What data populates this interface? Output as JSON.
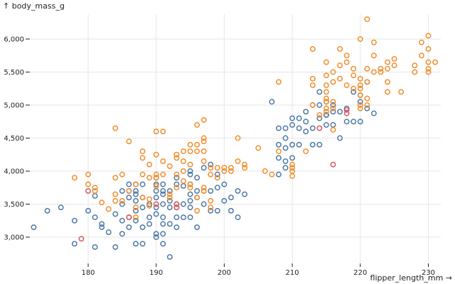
{
  "chart_data": {
    "type": "scatter",
    "title": "",
    "xlabel": "flipper_length_mm →",
    "ylabel": "↑ body_mass_g",
    "xlim": [
      170.5,
      233.5
    ],
    "ylim": [
      2600,
      6400
    ],
    "xticks": [
      180,
      190,
      200,
      210,
      220,
      230
    ],
    "xtick_labels": [
      "180",
      "190",
      "200",
      "210",
      "220",
      "230"
    ],
    "yticks": [
      3000,
      3500,
      4000,
      4500,
      5000,
      5500,
      6000
    ],
    "ytick_labels": [
      "3,000",
      "3,500",
      "4,000",
      "4,500",
      "5,000",
      "5,500",
      "6,000"
    ],
    "grid": true,
    "legend": "none",
    "marker": "hollow-circle",
    "series": [
      {
        "name": "blue",
        "color": "#4e79a7",
        "points": [
          [
            172,
            3150
          ],
          [
            174,
            3400
          ],
          [
            176,
            3450
          ],
          [
            178,
            3250
          ],
          [
            178,
            2900
          ],
          [
            180,
            3400
          ],
          [
            181,
            3625
          ],
          [
            181,
            3300
          ],
          [
            181,
            2850
          ],
          [
            182,
            3200
          ],
          [
            182,
            3150
          ],
          [
            183,
            3075
          ],
          [
            184,
            3350
          ],
          [
            184,
            2850
          ],
          [
            185,
            3700
          ],
          [
            185,
            3500
          ],
          [
            185,
            3250
          ],
          [
            185,
            3050
          ],
          [
            186,
            3700
          ],
          [
            186,
            3800
          ],
          [
            186,
            3600
          ],
          [
            186,
            3300
          ],
          [
            186,
            3150
          ],
          [
            187,
            3800
          ],
          [
            187,
            3700
          ],
          [
            187,
            3650
          ],
          [
            187,
            3550
          ],
          [
            187,
            3400
          ],
          [
            187,
            3250
          ],
          [
            187,
            2900
          ],
          [
            188,
            3800
          ],
          [
            188,
            3600
          ],
          [
            188,
            3450
          ],
          [
            188,
            3150
          ],
          [
            188,
            2900
          ],
          [
            189,
            3500
          ],
          [
            189,
            3300
          ],
          [
            189,
            3200
          ],
          [
            190,
            3900
          ],
          [
            190,
            3800
          ],
          [
            190,
            3700
          ],
          [
            190,
            3600
          ],
          [
            190,
            3450
          ],
          [
            190,
            3350
          ],
          [
            190,
            3050
          ],
          [
            190,
            3000
          ],
          [
            191,
            3800
          ],
          [
            191,
            3700
          ],
          [
            191,
            3650
          ],
          [
            191,
            3500
          ],
          [
            191,
            3300
          ],
          [
            191,
            3200
          ],
          [
            191,
            3050
          ],
          [
            191,
            2900
          ],
          [
            192,
            3700
          ],
          [
            192,
            3550
          ],
          [
            192,
            3450
          ],
          [
            192,
            3200
          ],
          [
            192,
            2700
          ],
          [
            193,
            3900
          ],
          [
            193,
            3800
          ],
          [
            193,
            3500
          ],
          [
            193,
            3450
          ],
          [
            193,
            3300
          ],
          [
            193,
            3150
          ],
          [
            194,
            3775
          ],
          [
            194,
            3500
          ],
          [
            194,
            3300
          ],
          [
            195,
            4000
          ],
          [
            195,
            3950
          ],
          [
            195,
            3800
          ],
          [
            195,
            3650
          ],
          [
            195,
            3550
          ],
          [
            195,
            3450
          ],
          [
            195,
            3300
          ],
          [
            196,
            3900
          ],
          [
            196,
            3700
          ],
          [
            196,
            3600
          ],
          [
            196,
            3150
          ],
          [
            197,
            4050
          ],
          [
            197,
            3700
          ],
          [
            197,
            3500
          ],
          [
            198,
            4100
          ],
          [
            198,
            3700
          ],
          [
            198,
            3400
          ],
          [
            199,
            3950
          ],
          [
            199,
            3750
          ],
          [
            199,
            3400
          ],
          [
            200,
            3800
          ],
          [
            200,
            3550
          ],
          [
            201,
            3600
          ],
          [
            201,
            3400
          ],
          [
            202,
            3700
          ],
          [
            202,
            3300
          ],
          [
            203,
            3650
          ],
          [
            207,
            5050
          ],
          [
            208,
            4650
          ],
          [
            208,
            4400
          ],
          [
            208,
            4200
          ],
          [
            208,
            3950
          ],
          [
            209,
            4650
          ],
          [
            209,
            4500
          ],
          [
            209,
            4350
          ],
          [
            209,
            4150
          ],
          [
            209,
            4050
          ],
          [
            210,
            4800
          ],
          [
            210,
            4700
          ],
          [
            210,
            4400
          ],
          [
            210,
            4200
          ],
          [
            211,
            4800
          ],
          [
            211,
            4650
          ],
          [
            211,
            4400
          ],
          [
            212,
            4900
          ],
          [
            212,
            4750
          ],
          [
            212,
            4600
          ],
          [
            213,
            5000
          ],
          [
            213,
            4650
          ],
          [
            213,
            4400
          ],
          [
            214,
            5200
          ],
          [
            214,
            5000
          ],
          [
            214,
            4800
          ],
          [
            214,
            4400
          ],
          [
            215,
            5050
          ],
          [
            215,
            4850
          ],
          [
            215,
            4850
          ],
          [
            215,
            4700
          ],
          [
            216,
            5000
          ],
          [
            216,
            4900
          ],
          [
            216,
            4700
          ],
          [
            217,
            4900
          ],
          [
            217,
            4500
          ],
          [
            218,
            4750
          ],
          [
            218,
            4950
          ],
          [
            219,
            5200
          ],
          [
            219,
            4750
          ],
          [
            220,
            5150
          ],
          [
            220,
            5050
          ],
          [
            220,
            4750
          ],
          [
            221,
            5350
          ],
          [
            221,
            4950
          ],
          [
            222,
            4875
          ]
        ]
      },
      {
        "name": "orange",
        "color": "#f28e2c",
        "points": [
          [
            178,
            3900
          ],
          [
            180,
            3950
          ],
          [
            180,
            3800
          ],
          [
            181,
            3750
          ],
          [
            181,
            3700
          ],
          [
            182,
            3525
          ],
          [
            183,
            3425
          ],
          [
            184,
            3650
          ],
          [
            184,
            3550
          ],
          [
            184,
            3900
          ],
          [
            184,
            4650
          ],
          [
            185,
            3950
          ],
          [
            185,
            3550
          ],
          [
            186,
            4450
          ],
          [
            186,
            3700
          ],
          [
            187,
            3800
          ],
          [
            187,
            3450
          ],
          [
            187,
            3300
          ],
          [
            188,
            3600
          ],
          [
            188,
            3950
          ],
          [
            188,
            4300
          ],
          [
            188,
            4200
          ],
          [
            189,
            3575
          ],
          [
            189,
            3475
          ],
          [
            189,
            3900
          ],
          [
            189,
            4100
          ],
          [
            190,
            4600
          ],
          [
            190,
            4250
          ],
          [
            190,
            3950
          ],
          [
            190,
            3900
          ],
          [
            190,
            3775
          ],
          [
            191,
            4600
          ],
          [
            191,
            4150
          ],
          [
            191,
            3950
          ],
          [
            192,
            4075
          ],
          [
            192,
            3600
          ],
          [
            192,
            3650
          ],
          [
            193,
            4250
          ],
          [
            193,
            4200
          ],
          [
            193,
            3950
          ],
          [
            193,
            3750
          ],
          [
            194,
            4000
          ],
          [
            194,
            4150
          ],
          [
            194,
            4300
          ],
          [
            194,
            3850
          ],
          [
            195,
            4400
          ],
          [
            195,
            4300
          ],
          [
            195,
            4100
          ],
          [
            195,
            3800
          ],
          [
            195,
            3750
          ],
          [
            196,
            4700
          ],
          [
            196,
            4400
          ],
          [
            196,
            4300
          ],
          [
            196,
            3600
          ],
          [
            196,
            3400
          ],
          [
            197,
            4775
          ],
          [
            197,
            4500
          ],
          [
            197,
            4450
          ],
          [
            197,
            4300
          ],
          [
            197,
            4150
          ],
          [
            197,
            3750
          ],
          [
            197,
            3700
          ],
          [
            198,
            3950
          ],
          [
            198,
            4050
          ],
          [
            198,
            3550
          ],
          [
            198,
            3450
          ],
          [
            199,
            4050
          ],
          [
            199,
            3900
          ],
          [
            200,
            4000
          ],
          [
            200,
            4050
          ],
          [
            201,
            4050
          ],
          [
            201,
            4000
          ],
          [
            202,
            4500
          ],
          [
            202,
            4150
          ],
          [
            203,
            4100
          ],
          [
            203,
            4050
          ],
          [
            205,
            4350
          ],
          [
            206,
            4000
          ],
          [
            207,
            3950
          ],
          [
            208,
            4300
          ],
          [
            208,
            5350
          ],
          [
            210,
            3925
          ],
          [
            210,
            4000
          ],
          [
            210,
            4100
          ],
          [
            210,
            4050
          ],
          [
            212,
            4300
          ],
          [
            213,
            5850
          ],
          [
            213,
            5400
          ],
          [
            213,
            5300
          ],
          [
            213,
            5000
          ],
          [
            214,
            4850
          ],
          [
            215,
            4950
          ],
          [
            215,
            4900
          ],
          [
            215,
            5050
          ],
          [
            215,
            5100
          ],
          [
            215,
            5200
          ],
          [
            215,
            5300
          ],
          [
            215,
            5450
          ],
          [
            215,
            5650
          ],
          [
            216,
            4625
          ],
          [
            216,
            4950
          ],
          [
            216,
            5350
          ],
          [
            216,
            5500
          ],
          [
            216,
            5050
          ],
          [
            217,
            5850
          ],
          [
            217,
            5600
          ],
          [
            217,
            5400
          ],
          [
            218,
            5300
          ],
          [
            218,
            5650
          ],
          [
            218,
            5750
          ],
          [
            219,
            5250
          ],
          [
            219,
            5450
          ],
          [
            219,
            5550
          ],
          [
            220,
            6000
          ],
          [
            220,
            5400
          ],
          [
            220,
            5300
          ],
          [
            220,
            5250
          ],
          [
            220,
            5150
          ],
          [
            220,
            5000
          ],
          [
            220,
            4950
          ],
          [
            221,
            6300
          ],
          [
            221,
            5550
          ],
          [
            221,
            5350
          ],
          [
            221,
            5100
          ],
          [
            221,
            5000
          ],
          [
            222,
            5950
          ],
          [
            222,
            5750
          ],
          [
            222,
            5500
          ],
          [
            223,
            5550
          ],
          [
            223,
            5500
          ],
          [
            224,
            5650
          ],
          [
            224,
            5550
          ],
          [
            224,
            5350
          ],
          [
            224,
            5200
          ],
          [
            225,
            5700
          ],
          [
            225,
            5600
          ],
          [
            226,
            5200
          ],
          [
            228,
            5500
          ],
          [
            228,
            5600
          ],
          [
            229,
            5750
          ],
          [
            229,
            5950
          ],
          [
            230,
            6050
          ],
          [
            230,
            5850
          ],
          [
            230,
            5650
          ],
          [
            230,
            5550
          ],
          [
            230,
            5500
          ],
          [
            231,
            5650
          ]
        ]
      },
      {
        "name": "red",
        "color": "#e15759",
        "points": [
          [
            179,
            2975
          ],
          [
            180,
            3700
          ],
          [
            186,
            3300
          ],
          [
            190,
            3500
          ],
          [
            193,
            3500
          ],
          [
            193,
            3450
          ],
          [
            214,
            4650
          ],
          [
            216,
            4100
          ],
          [
            218,
            4875
          ],
          [
            218,
            4925
          ]
        ]
      }
    ]
  }
}
